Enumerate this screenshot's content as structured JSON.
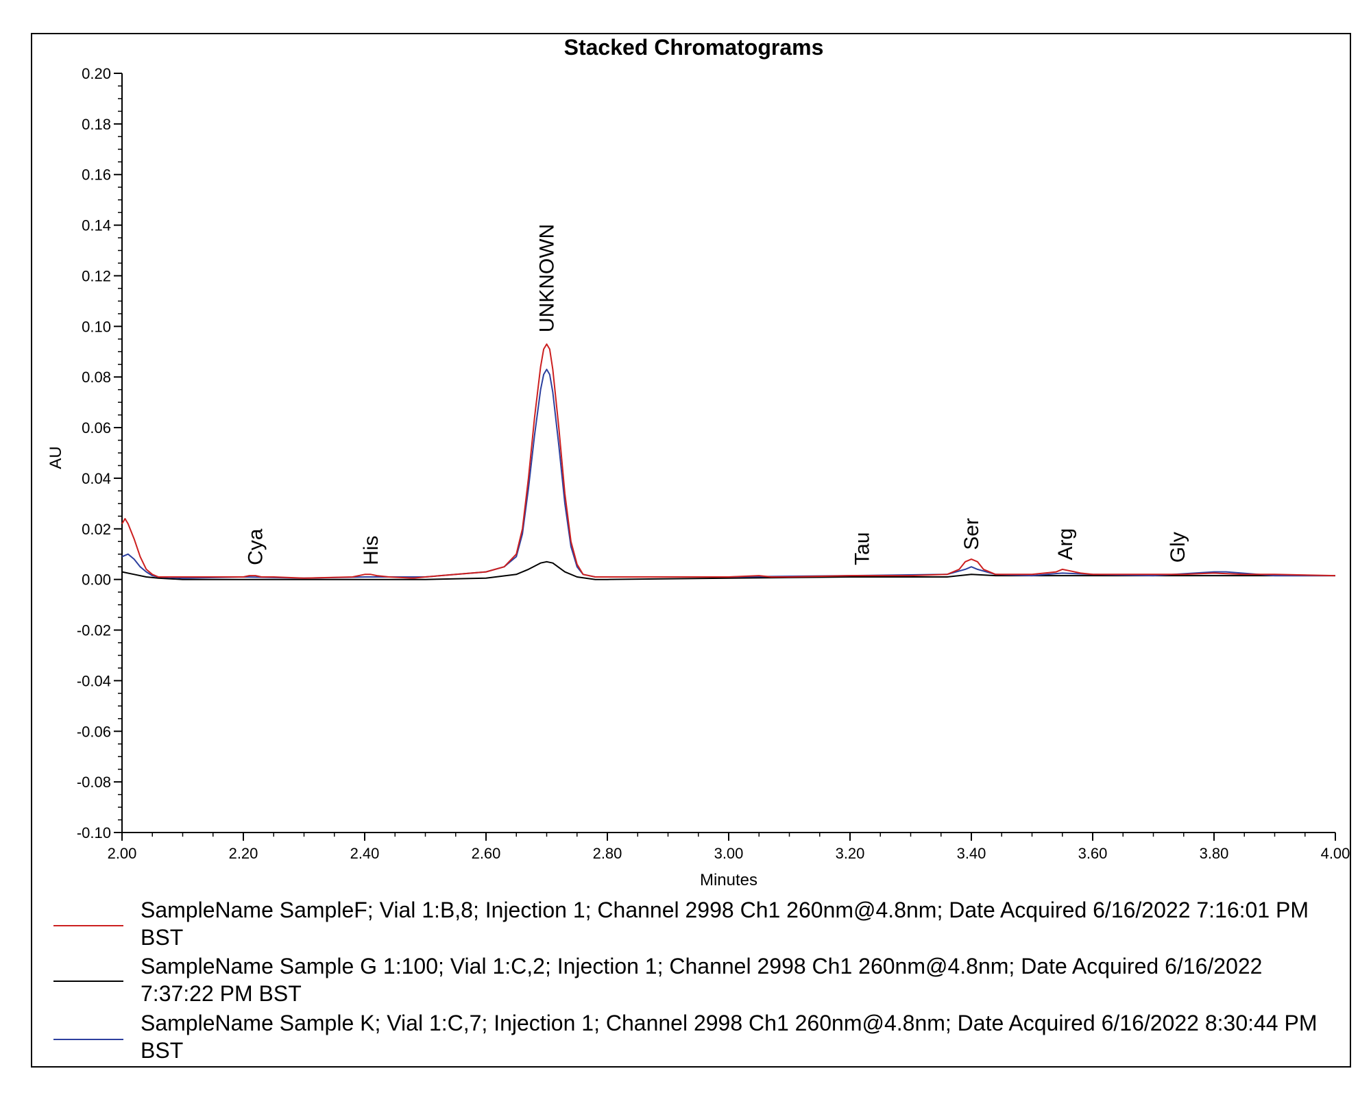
{
  "chart_data": {
    "type": "line",
    "title": "Stacked Chromatograms",
    "xlabel": "Minutes",
    "ylabel": "AU",
    "xlim": [
      2.0,
      4.0
    ],
    "ylim": [
      -0.1,
      0.2
    ],
    "x_ticks": [
      "2.00",
      "2.20",
      "2.40",
      "2.60",
      "2.80",
      "3.00",
      "3.20",
      "3.40",
      "3.60",
      "3.80",
      "4.00"
    ],
    "x_tick_values": [
      2.0,
      2.2,
      2.4,
      2.6,
      2.8,
      3.0,
      3.2,
      3.4,
      3.6,
      3.8,
      4.0
    ],
    "y_ticks": [
      "-0.10",
      "-0.08",
      "-0.06",
      "-0.04",
      "-0.02",
      "0.00",
      "0.02",
      "0.04",
      "0.06",
      "0.08",
      "0.10",
      "0.12",
      "0.14",
      "0.16",
      "0.18",
      "0.20"
    ],
    "y_tick_values": [
      -0.1,
      -0.08,
      -0.06,
      -0.04,
      -0.02,
      0.0,
      0.02,
      0.04,
      0.06,
      0.08,
      0.1,
      0.12,
      0.14,
      0.16,
      0.18,
      0.2
    ],
    "grid": false,
    "legend_position": "bottom",
    "peak_labels": [
      {
        "text": "Cya",
        "x": 2.22,
        "y": 0.004
      },
      {
        "text": "His",
        "x": 2.41,
        "y": 0.004
      },
      {
        "text": "UNKNOWN",
        "x": 2.7,
        "y": 0.096
      },
      {
        "text": "Tau",
        "x": 3.22,
        "y": 0.004
      },
      {
        "text": "Ser",
        "x": 3.4,
        "y": 0.01
      },
      {
        "text": "Arg",
        "x": 3.555,
        "y": 0.006
      },
      {
        "text": "Gly",
        "x": 3.74,
        "y": 0.005
      }
    ],
    "series": [
      {
        "name": "SampleName SampleF; Vial 1:B,8; Injection 1; Channel 2998 Ch1 260nm@4.8nm; Date Acquired 6/16/2022 7:16:01 PM BST",
        "color": "#cc1f1f",
        "x": [
          2.0,
          2.005,
          2.01,
          2.02,
          2.03,
          2.04,
          2.05,
          2.06,
          2.1,
          2.2,
          2.21,
          2.22,
          2.23,
          2.25,
          2.3,
          2.38,
          2.4,
          2.41,
          2.42,
          2.44,
          2.48,
          2.5,
          2.55,
          2.6,
          2.63,
          2.65,
          2.66,
          2.67,
          2.68,
          2.69,
          2.695,
          2.7,
          2.705,
          2.71,
          2.72,
          2.73,
          2.74,
          2.75,
          2.76,
          2.78,
          2.8,
          2.9,
          3.0,
          3.05,
          3.07,
          3.1,
          3.2,
          3.3,
          3.36,
          3.38,
          3.39,
          3.4,
          3.41,
          3.42,
          3.44,
          3.5,
          3.54,
          3.55,
          3.56,
          3.58,
          3.6,
          3.7,
          3.75,
          3.8,
          3.85,
          3.9,
          4.0
        ],
        "values": [
          0.022,
          0.024,
          0.022,
          0.016,
          0.009,
          0.004,
          0.002,
          0.001,
          0.001,
          0.001,
          0.0015,
          0.0015,
          0.001,
          0.001,
          0.0005,
          0.001,
          0.002,
          0.002,
          0.0015,
          0.001,
          0.0005,
          0.001,
          0.002,
          0.003,
          0.005,
          0.01,
          0.02,
          0.04,
          0.064,
          0.084,
          0.091,
          0.093,
          0.091,
          0.083,
          0.06,
          0.034,
          0.015,
          0.006,
          0.002,
          0.001,
          0.001,
          0.001,
          0.001,
          0.0015,
          0.001,
          0.001,
          0.0015,
          0.0015,
          0.002,
          0.004,
          0.007,
          0.008,
          0.007,
          0.004,
          0.002,
          0.002,
          0.003,
          0.004,
          0.0035,
          0.0025,
          0.002,
          0.002,
          0.002,
          0.0025,
          0.002,
          0.002,
          0.0015
        ]
      },
      {
        "name": "SampleName Sample G 1:100; Vial 1:C,2; Injection 1; Channel 2998 Ch1 260nm@4.8nm; Date Acquired 6/16/2022 7:37:22 PM BST",
        "color": "#000000",
        "x": [
          2.0,
          2.02,
          2.04,
          2.06,
          2.1,
          2.3,
          2.5,
          2.6,
          2.65,
          2.67,
          2.69,
          2.7,
          2.71,
          2.73,
          2.75,
          2.78,
          2.8,
          3.0,
          3.2,
          3.36,
          3.4,
          3.44,
          3.5,
          3.6,
          3.7,
          3.8,
          4.0
        ],
        "values": [
          0.003,
          0.002,
          0.001,
          0.0005,
          0.0,
          0.0,
          0.0,
          0.0005,
          0.002,
          0.004,
          0.0065,
          0.007,
          0.0065,
          0.003,
          0.001,
          0.0,
          0.0,
          0.0005,
          0.001,
          0.001,
          0.002,
          0.0015,
          0.0015,
          0.0015,
          0.0015,
          0.0015,
          0.0015
        ]
      },
      {
        "name": "SampleName Sample K; Vial 1:C,7; Injection 1; Channel 2998 Ch1 260nm@4.8nm; Date Acquired 6/16/2022 8:30:44 PM BST",
        "color": "#2c3f9e",
        "x": [
          2.0,
          2.01,
          2.02,
          2.03,
          2.04,
          2.05,
          2.06,
          2.1,
          2.2,
          2.3,
          2.4,
          2.5,
          2.6,
          2.63,
          2.65,
          2.66,
          2.67,
          2.68,
          2.69,
          2.695,
          2.7,
          2.705,
          2.71,
          2.72,
          2.73,
          2.74,
          2.75,
          2.76,
          2.78,
          2.8,
          3.0,
          3.2,
          3.36,
          3.39,
          3.4,
          3.41,
          3.44,
          3.5,
          3.55,
          3.6,
          3.7,
          3.8,
          3.82,
          3.9,
          4.0
        ],
        "values": [
          0.009,
          0.01,
          0.008,
          0.005,
          0.003,
          0.0015,
          0.001,
          0.0005,
          0.001,
          0.0005,
          0.001,
          0.001,
          0.003,
          0.005,
          0.009,
          0.018,
          0.036,
          0.057,
          0.075,
          0.081,
          0.083,
          0.081,
          0.074,
          0.053,
          0.03,
          0.013,
          0.005,
          0.002,
          0.001,
          0.001,
          0.001,
          0.0015,
          0.002,
          0.004,
          0.005,
          0.004,
          0.002,
          0.0015,
          0.0025,
          0.002,
          0.0015,
          0.003,
          0.003,
          0.0015,
          0.0015
        ]
      }
    ]
  }
}
